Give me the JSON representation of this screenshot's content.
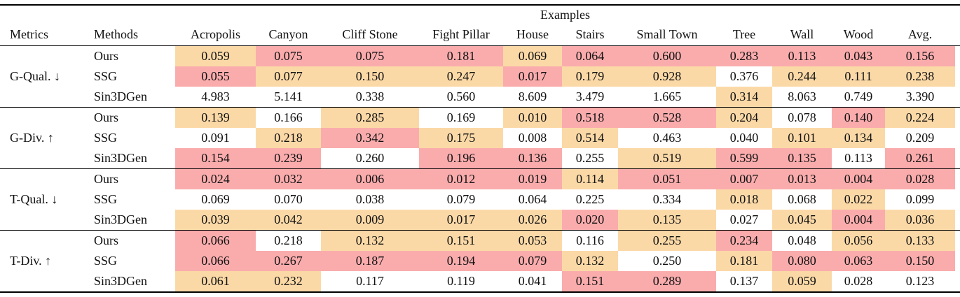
{
  "colors": {
    "best_bg": "#faacad",
    "second_best_bg": "#fbd9a7",
    "mark_bg": {
      "b": "#faacad",
      "s": "#fbd9a7",
      "n": ""
    },
    "text": "#111111"
  },
  "table": {
    "examples_header": "Examples",
    "metrics_header": "Metrics",
    "methods_header": "Methods",
    "example_columns": [
      "Acropolis",
      "Canyon",
      "Cliff Stone",
      "Fight Pillar",
      "House",
      "Stairs",
      "Small Town",
      "Tree",
      "Wall",
      "Wood",
      "Avg."
    ],
    "groups": [
      {
        "label": "G-Qual. ↓",
        "rows": [
          {
            "method": "Ours",
            "values": [
              "0.059",
              "0.075",
              "0.075",
              "0.181",
              "0.069",
              "0.064",
              "0.600",
              "0.283",
              "0.113",
              "0.043",
              "0.156"
            ],
            "marks": [
              "s",
              "b",
              "b",
              "b",
              "s",
              "b",
              "b",
              "b",
              "b",
              "b",
              "b"
            ]
          },
          {
            "method": "SSG",
            "values": [
              "0.055",
              "0.077",
              "0.150",
              "0.247",
              "0.017",
              "0.179",
              "0.928",
              "0.376",
              "0.244",
              "0.111",
              "0.238"
            ],
            "marks": [
              "b",
              "s",
              "s",
              "s",
              "b",
              "s",
              "s",
              "n",
              "s",
              "s",
              "s"
            ]
          },
          {
            "method": "Sin3DGen",
            "values": [
              "4.983",
              "5.141",
              "0.338",
              "0.560",
              "8.609",
              "3.479",
              "1.665",
              "0.314",
              "8.063",
              "0.749",
              "3.390"
            ],
            "marks": [
              "n",
              "n",
              "n",
              "n",
              "n",
              "n",
              "n",
              "s",
              "n",
              "n",
              "n"
            ]
          }
        ]
      },
      {
        "label": "G-Div. ↑",
        "rows": [
          {
            "method": "Ours",
            "values": [
              "0.139",
              "0.166",
              "0.285",
              "0.169",
              "0.010",
              "0.518",
              "0.528",
              "0.204",
              "0.078",
              "0.140",
              "0.224"
            ],
            "marks": [
              "s",
              "n",
              "s",
              "n",
              "s",
              "b",
              "b",
              "s",
              "n",
              "b",
              "s"
            ]
          },
          {
            "method": "SSG",
            "values": [
              "0.091",
              "0.218",
              "0.342",
              "0.175",
              "0.008",
              "0.514",
              "0.463",
              "0.040",
              "0.101",
              "0.134",
              "0.209"
            ],
            "marks": [
              "n",
              "s",
              "b",
              "s",
              "n",
              "s",
              "n",
              "n",
              "s",
              "s",
              "n"
            ]
          },
          {
            "method": "Sin3DGen",
            "values": [
              "0.154",
              "0.239",
              "0.260",
              "0.196",
              "0.136",
              "0.255",
              "0.519",
              "0.599",
              "0.135",
              "0.113",
              "0.261"
            ],
            "marks": [
              "b",
              "b",
              "n",
              "b",
              "b",
              "n",
              "s",
              "b",
              "b",
              "n",
              "b"
            ]
          }
        ]
      },
      {
        "label": "T-Qual. ↓",
        "rows": [
          {
            "method": "Ours",
            "values": [
              "0.024",
              "0.032",
              "0.006",
              "0.012",
              "0.019",
              "0.114",
              "0.051",
              "0.007",
              "0.013",
              "0.004",
              "0.028"
            ],
            "marks": [
              "b",
              "b",
              "b",
              "b",
              "b",
              "s",
              "b",
              "b",
              "b",
              "b",
              "b"
            ]
          },
          {
            "method": "SSG",
            "values": [
              "0.069",
              "0.070",
              "0.038",
              "0.079",
              "0.064",
              "0.225",
              "0.334",
              "0.018",
              "0.068",
              "0.022",
              "0.099"
            ],
            "marks": [
              "n",
              "n",
              "n",
              "n",
              "n",
              "n",
              "n",
              "s",
              "n",
              "s",
              "n"
            ]
          },
          {
            "method": "Sin3DGen",
            "values": [
              "0.039",
              "0.042",
              "0.009",
              "0.017",
              "0.026",
              "0.020",
              "0.135",
              "0.027",
              "0.045",
              "0.004",
              "0.036"
            ],
            "marks": [
              "s",
              "s",
              "s",
              "s",
              "s",
              "b",
              "s",
              "n",
              "s",
              "b",
              "s"
            ]
          }
        ]
      },
      {
        "label": "T-Div. ↑",
        "rows": [
          {
            "method": "Ours",
            "values": [
              "0.066",
              "0.218",
              "0.132",
              "0.151",
              "0.053",
              "0.116",
              "0.255",
              "0.234",
              "0.048",
              "0.056",
              "0.133"
            ],
            "marks": [
              "b",
              "n",
              "s",
              "s",
              "s",
              "n",
              "s",
              "b",
              "n",
              "s",
              "s"
            ]
          },
          {
            "method": "SSG",
            "values": [
              "0.066",
              "0.267",
              "0.187",
              "0.194",
              "0.079",
              "0.132",
              "0.250",
              "0.181",
              "0.080",
              "0.063",
              "0.150"
            ],
            "marks": [
              "b",
              "b",
              "b",
              "b",
              "b",
              "s",
              "n",
              "s",
              "b",
              "b",
              "b"
            ]
          },
          {
            "method": "Sin3DGen",
            "values": [
              "0.061",
              "0.232",
              "0.117",
              "0.119",
              "0.041",
              "0.151",
              "0.289",
              "0.137",
              "0.059",
              "0.028",
              "0.123"
            ],
            "marks": [
              "s",
              "s",
              "n",
              "n",
              "n",
              "b",
              "b",
              "n",
              "s",
              "n",
              "n"
            ]
          }
        ]
      }
    ]
  }
}
